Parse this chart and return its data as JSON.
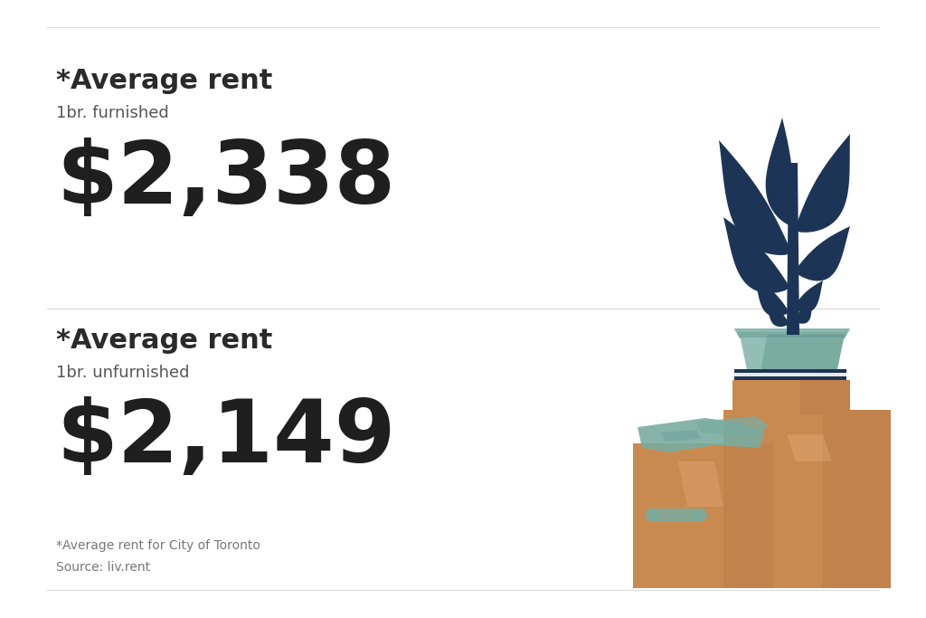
{
  "bg_color": "#ffffff",
  "divider_color": "#d8d8d8",
  "title_color": "#2a2a2a",
  "subtitle_color": "#555555",
  "value_color": "#1f1f1f",
  "footnote_color": "#777777",
  "section1_title": "*Average rent",
  "section1_subtitle": "1br. furnished",
  "section1_value": "$2,338",
  "section2_title": "*Average rent",
  "section2_subtitle": "1br. unfurnished",
  "section2_value": "$2,149",
  "footnote": "*Average rent for City of Toronto",
  "source": "Source: liv.rent",
  "title_fontsize": 22,
  "subtitle_fontsize": 13,
  "value_fontsize": 70,
  "footnote_fontsize": 10,
  "plant_color": "#1c3557",
  "pot_color": "#7aaca0",
  "pot_highlight": "#a8cec8",
  "pot_dark": "#5a9090",
  "box_color": "#c98a50",
  "box_shadow": "#b07040",
  "box_highlight": "#e8b080",
  "box_handle": "#7aaca0",
  "book_dark": "#1c3557",
  "book_light": "#e8e8e8",
  "teal_color": "#7aaca0",
  "teal_dark": "#5a9090"
}
